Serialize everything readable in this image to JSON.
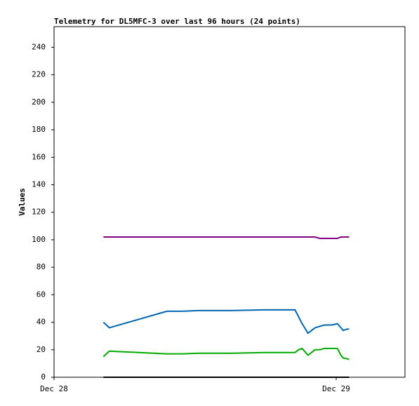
{
  "chart_data": {
    "type": "line",
    "title": "Telemetry for DL5MFC-3 over last 96 hours (24 points)",
    "y_label": "Values",
    "x": [
      4.2,
      4.7,
      9.6,
      10.9,
      12.3,
      15.1,
      17.9,
      19.3,
      20.5,
      20.8,
      21.1,
      21.6,
      21.9,
      22.2,
      22.6,
      23.0,
      23.3,
      23.6,
      23.9,
      24.1,
      24.4,
      24.6,
      24.9,
      25.1
    ],
    "xlim": [
      0,
      29.85
    ],
    "xticks": [
      {
        "value": 0,
        "label": "Dec 28"
      },
      {
        "value": 24,
        "label": "Dec 29"
      }
    ],
    "ylim": [
      0,
      255
    ],
    "yticks": [
      0,
      20,
      40,
      60,
      80,
      100,
      120,
      140,
      160,
      180,
      200,
      220,
      240
    ],
    "grid": false,
    "series": [
      {
        "color": "#800080",
        "values": [
          102,
          102,
          102,
          102,
          102,
          102,
          102,
          102,
          102,
          102,
          102,
          102,
          102,
          102,
          101,
          101,
          101,
          101,
          101,
          101,
          102,
          102,
          102,
          102
        ]
      },
      {
        "color": "#0066b3",
        "values": [
          40,
          36,
          48,
          48,
          48.5,
          48.5,
          49,
          49,
          49,
          44,
          39,
          32,
          34,
          36,
          37,
          38,
          38,
          38,
          38.5,
          39,
          36,
          34,
          35,
          35
        ]
      },
      {
        "color": "#00aa00",
        "values": [
          15,
          19,
          17,
          17,
          17.5,
          17.5,
          18,
          18,
          18,
          20,
          21,
          16,
          18,
          20,
          20,
          21,
          21,
          21,
          21,
          21,
          16,
          14,
          13.5,
          13
        ]
      },
      {
        "color": "#000000",
        "values": [
          0,
          0,
          0,
          0,
          0,
          0,
          0,
          0,
          0,
          0,
          0,
          0,
          0,
          0,
          0,
          0,
          0,
          0,
          0,
          0,
          0,
          0,
          0,
          0
        ]
      }
    ]
  }
}
